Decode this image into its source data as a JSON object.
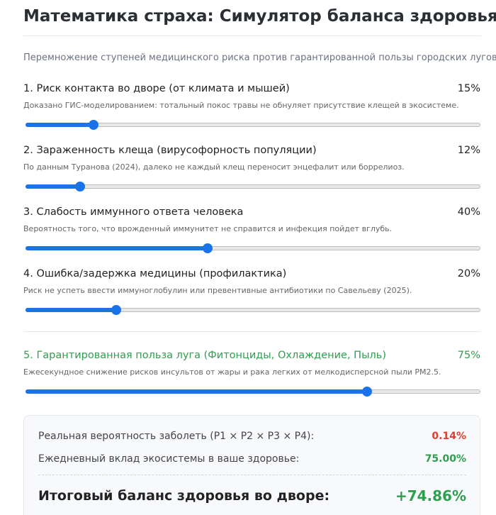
{
  "header": {
    "title": "Математика страха: Симулятор баланса здоровья",
    "subtitle": "Перемножение ступеней медицинского риска против гарантированной пользы городских лугов"
  },
  "slider_range": [
    0,
    100
  ],
  "sliders": [
    {
      "label": "1. Риск контакта во дворе (от климата и мышей)",
      "value": 15,
      "value_label": "15%",
      "description": "Доказано ГИС-моделированием: тотальный покос травы не обнуляет присутствие клещей в экосистеме."
    },
    {
      "label": "2. Зараженность клеща (вирусофорность популяции)",
      "value": 12,
      "value_label": "12%",
      "description": "По данным Туранова (2024), далеко не каждый клещ переносит энцефалит или боррелиоз."
    },
    {
      "label": "3. Слабость иммунного ответа человека",
      "value": 40,
      "value_label": "40%",
      "description": "Вероятность того, что врожденный иммунитет не справится и инфекция пойдет вглубь."
    },
    {
      "label": "4. Ошибка/задержка медицины (профилактика)",
      "value": 20,
      "value_label": "20%",
      "description": "Риск не успеть ввести иммуноглобулин или превентивные антибиотики по Савельеву (2025)."
    },
    {
      "label": "5. Гарантированная польза луга (Фитонциды, Охлаждение, Пыль)",
      "value": 75,
      "value_label": "75%",
      "description": "Ежесекундное снижение рисков инсультов от жары и рака легких от мелкодисперсной пыли PM2.5."
    }
  ],
  "results": {
    "risk": {
      "label": "Реальная вероятность заболеть (P1 × P2 × P3 × P4):",
      "value": "0.14%"
    },
    "benefit": {
      "label": "Ежедневный вклад экосистемы в ваше здоровье:",
      "value": "75.00%"
    },
    "total": {
      "label": "Итоговый баланс здоровья во дворе:",
      "value": "+74.86%"
    }
  }
}
